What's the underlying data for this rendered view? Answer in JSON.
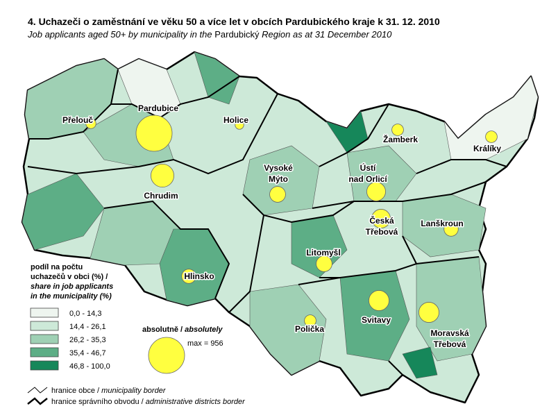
{
  "title": "4. Uchazeči o zaměstnání ve věku 50 a více let v obcích Pardubického kraje k 31. 12. 2010",
  "subtitle": {
    "italic_start": "Job applicants aged 50+ by municipality in the",
    "plain": "Pardubický",
    "italic_end": "Region as at 31 December 2010"
  },
  "towns": [
    {
      "lines": [
        "Přelouč"
      ],
      "count": 75
    },
    {
      "lines": [
        "Pardubice"
      ],
      "count": 956
    },
    {
      "lines": [
        "Holice"
      ],
      "count": 55
    },
    {
      "lines": [
        "Vysoké",
        "Mýto"
      ],
      "count": 185
    },
    {
      "lines": [
        "Ústí",
        "nad Orlicí"
      ],
      "count": 260
    },
    {
      "lines": [
        "Žamberk"
      ],
      "count": 100
    },
    {
      "lines": [
        "Králíky"
      ],
      "count": 100
    },
    {
      "lines": [
        "Chrudim"
      ],
      "count": 390
    },
    {
      "lines": [
        "Česká",
        "Třebová"
      ],
      "count": 260
    },
    {
      "lines": [
        "Lanškroun"
      ],
      "count": 150
    },
    {
      "lines": [
        "Litomyšl"
      ],
      "count": 185
    },
    {
      "lines": [
        "Hlinsko"
      ],
      "count": 150
    },
    {
      "lines": [
        "Svitavy"
      ],
      "count": 300
    },
    {
      "lines": [
        "Polička"
      ],
      "count": 100
    },
    {
      "lines": [
        "Moravská",
        "Třebová"
      ],
      "count": 300
    }
  ],
  "legend": {
    "title_cz": [
      "podíl na počtu",
      "uchazečů v obci (%) /"
    ],
    "title_en": [
      "share in job applicants",
      "in the municipality (%)"
    ],
    "classes": [
      {
        "label": "0,0 -  14,3",
        "color": "#eef5ef"
      },
      {
        "label": "14,4 -  26,1",
        "color": "#cde9d8"
      },
      {
        "label": "26,2 -  35,3",
        "color": "#9fd0b4"
      },
      {
        "label": "35,4 -  46,7",
        "color": "#5dae86"
      },
      {
        "label": "46,8 - 100,0",
        "color": "#16875a"
      }
    ],
    "size_title_cz": "absolutně /",
    "size_title_en": "absolutely",
    "max_label": "max = 956",
    "max_value": 956,
    "borders": [
      {
        "cz": "hranice obce /",
        "en": "municipality border"
      },
      {
        "cz": "hranice správního obvodu /",
        "en": "administrative districts border"
      }
    ]
  }
}
